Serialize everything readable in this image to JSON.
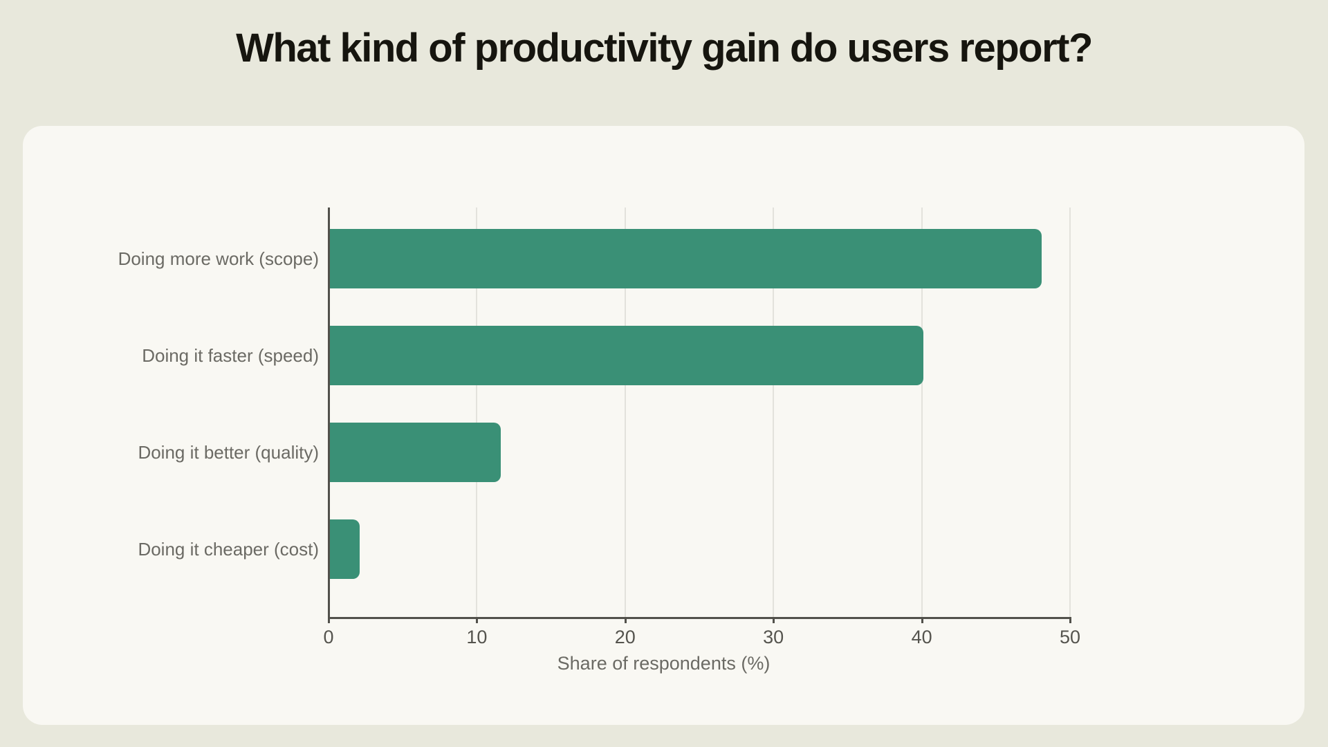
{
  "title": "What kind of productivity gain do users report?",
  "chart_data": {
    "type": "bar",
    "orientation": "horizontal",
    "categories": [
      "Doing more work (scope)",
      "Doing it faster (speed)",
      "Doing it better (quality)",
      "Doing it cheaper (cost)"
    ],
    "values": [
      48,
      40,
      11.5,
      2
    ],
    "xlabel": "Share of respondents (%)",
    "xlim": [
      0,
      50
    ],
    "x_ticks": [
      0,
      10,
      20,
      30,
      40,
      50
    ],
    "grid": "vertical-only",
    "legend": "none",
    "bar_color": "#3a9076"
  },
  "colors": {
    "page_background": "#e8e8dc",
    "card_background": "#f9f8f3",
    "bar": "#3a9076",
    "gridline": "#e3e2dc",
    "axis_line": "#52514b",
    "tick_label": "#55544e",
    "category_label": "#6b6a64",
    "title": "#16150f"
  }
}
